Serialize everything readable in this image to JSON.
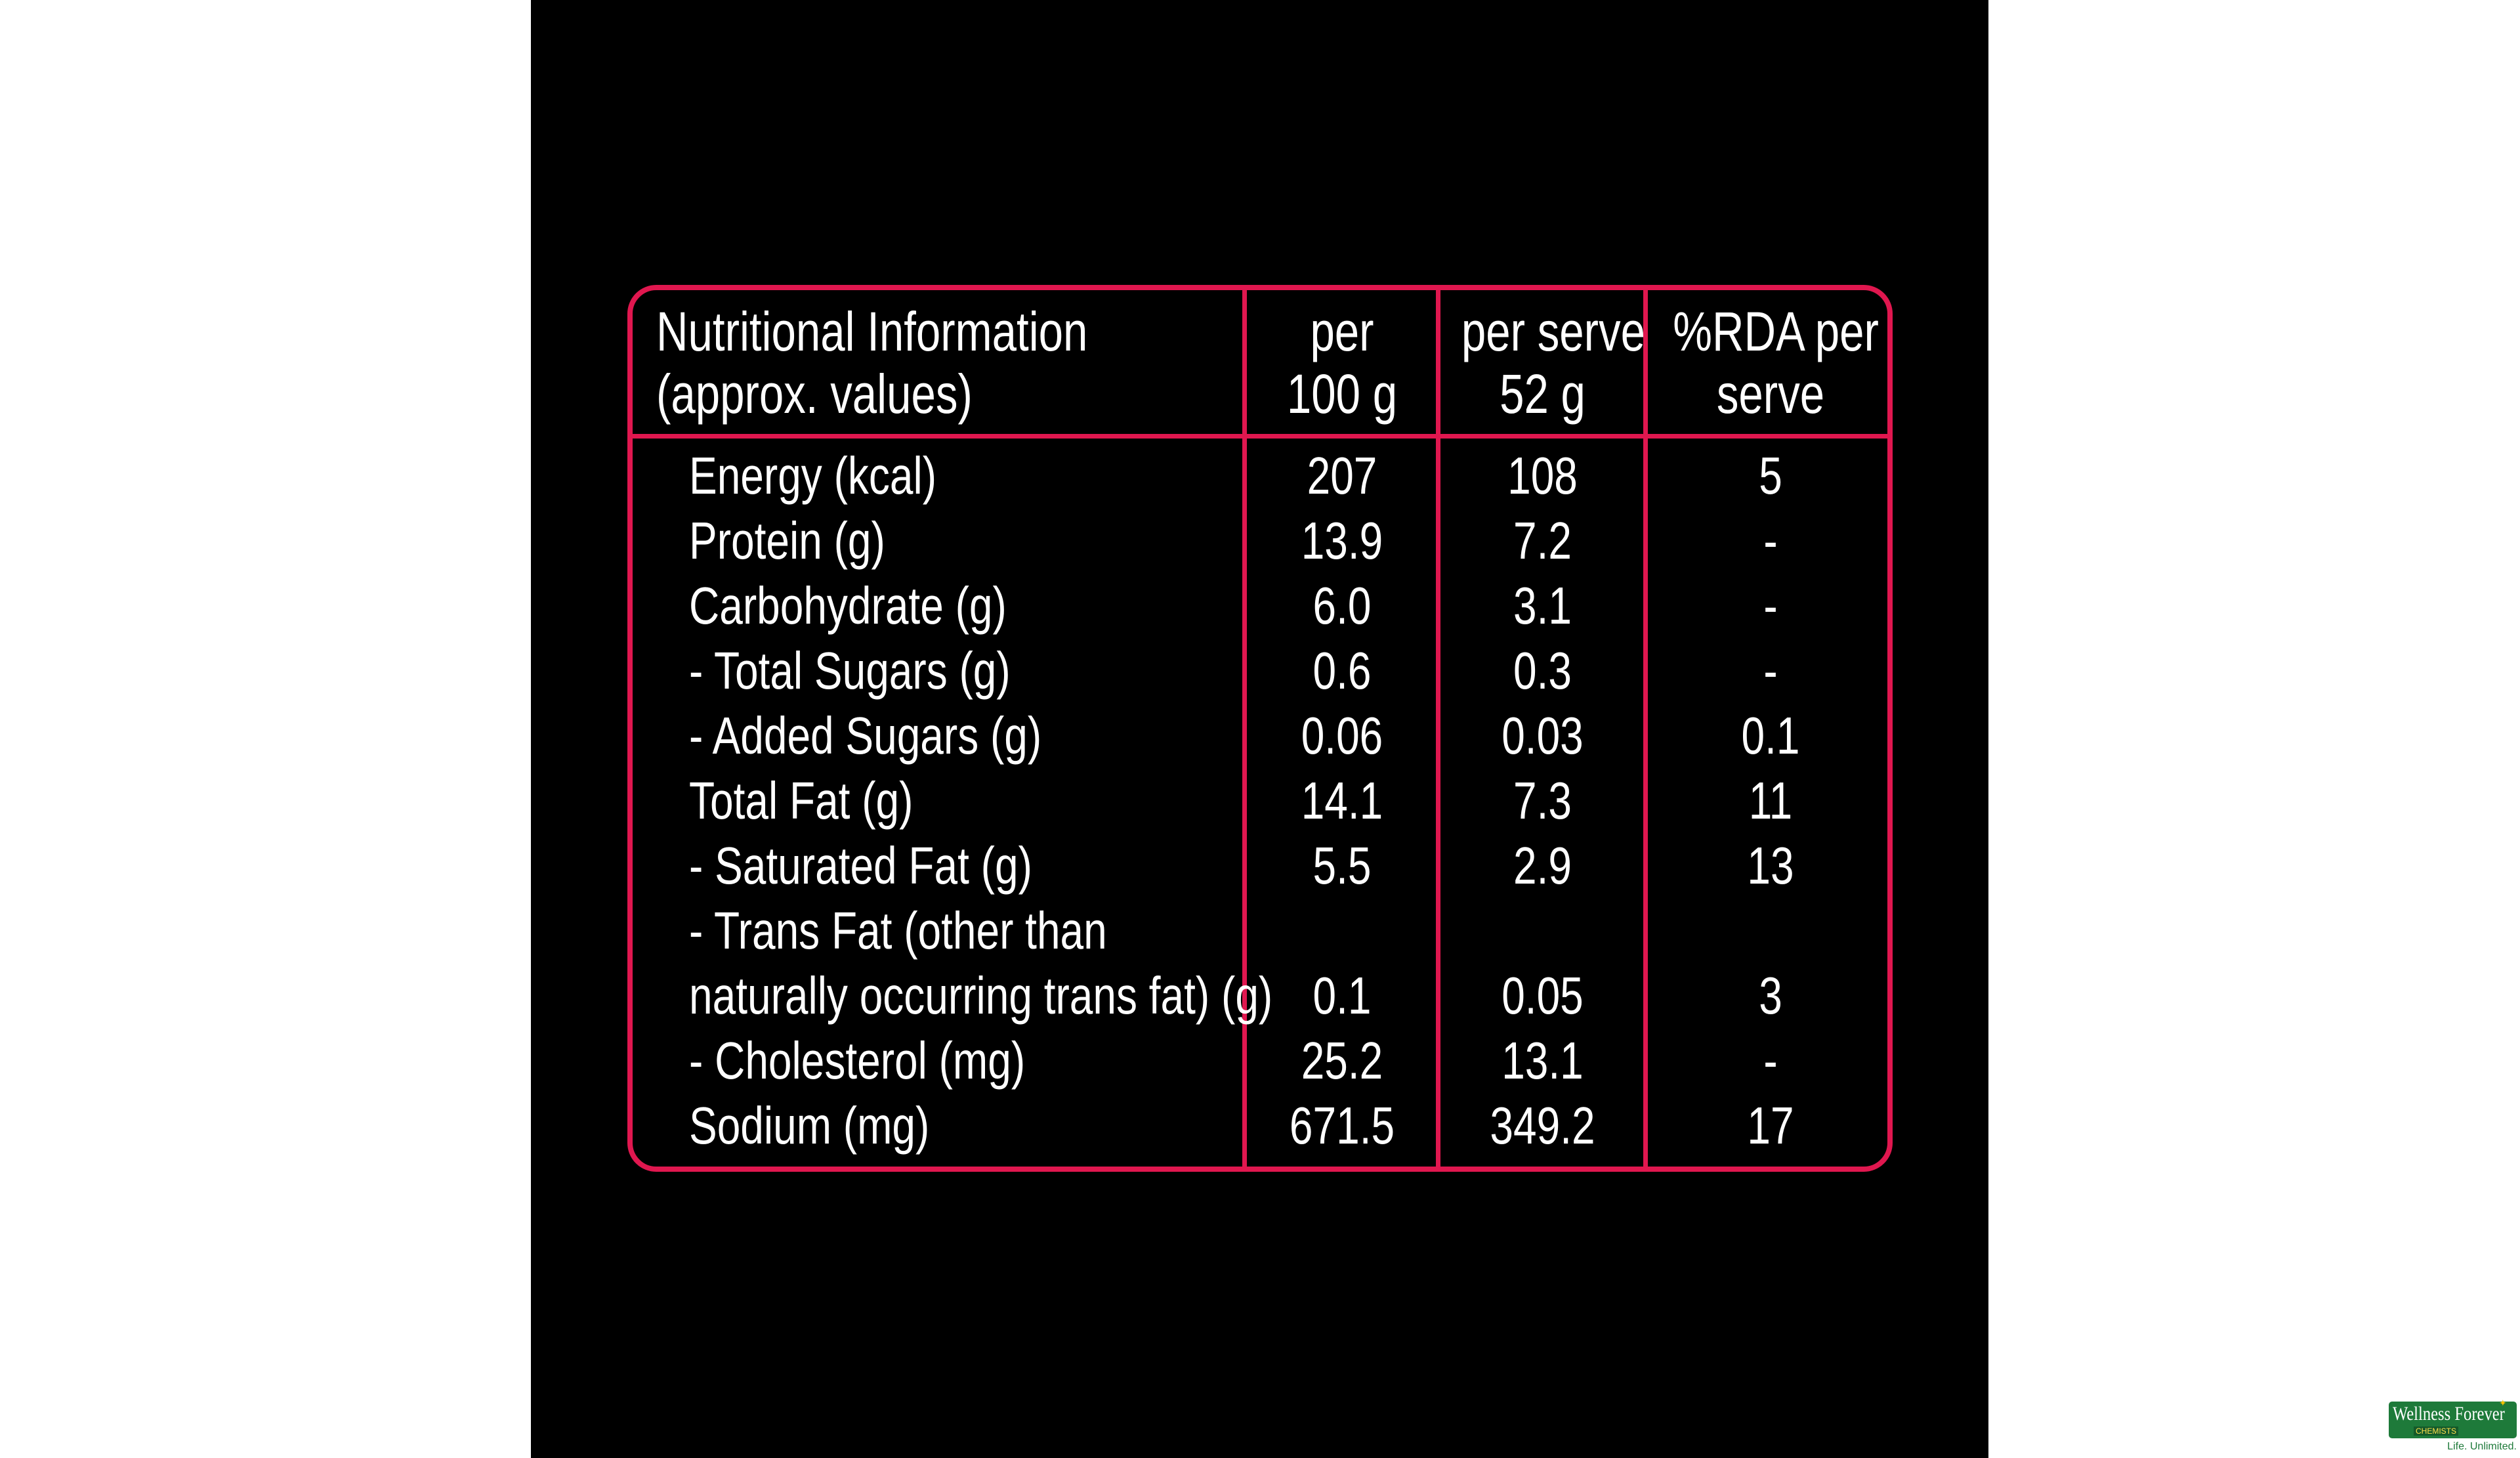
{
  "header": {
    "col0": {
      "line1": "Nutritional Information",
      "line2": "(approx. values)"
    },
    "col1": {
      "line1": "per",
      "line2": "100 g"
    },
    "col2": {
      "line1": "per serve",
      "line2": "52 g"
    },
    "col3": {
      "line1": "%RDA per",
      "line2": "serve"
    }
  },
  "rows": [
    {
      "label": "Energy (kcal)",
      "per100": "207",
      "perServe": "108",
      "rda": "5"
    },
    {
      "label": "Protein (g)",
      "per100": "13.9",
      "perServe": "7.2",
      "rda": "-"
    },
    {
      "label": "Carbohydrate (g)",
      "per100": "6.0",
      "perServe": "3.1",
      "rda": "-"
    },
    {
      "label": "- Total Sugars (g)",
      "per100": "0.6",
      "perServe": "0.3",
      "rda": "-"
    },
    {
      "label": "- Added Sugars (g)",
      "per100": "0.06",
      "perServe": "0.03",
      "rda": "0.1"
    },
    {
      "label": "Total Fat (g)",
      "per100": "14.1",
      "perServe": "7.3",
      "rda": "11"
    },
    {
      "label": "- Saturated Fat (g)",
      "per100": "5.5",
      "perServe": "2.9",
      "rda": "13"
    },
    {
      "label": "- Trans Fat (other than",
      "per100": "",
      "perServe": "",
      "rda": ""
    },
    {
      "label": "naturally occurring trans fat) (g)",
      "per100": "0.1",
      "perServe": "0.05",
      "rda": "3"
    },
    {
      "label": "- Cholesterol (mg)",
      "per100": "25.2",
      "perServe": "13.1",
      "rda": "-"
    },
    {
      "label": "Sodium (mg)",
      "per100": "671.5",
      "perServe": "349.2",
      "rda": "17"
    }
  ],
  "watermark": {
    "name": "Wellness Forever",
    "sub": "CHEMISTS",
    "tagline": "Life. Unlimited."
  },
  "colors": {
    "border": "#e0174f",
    "background": "#000000",
    "text": "#ffffff",
    "logo": "#1e7a3a"
  }
}
